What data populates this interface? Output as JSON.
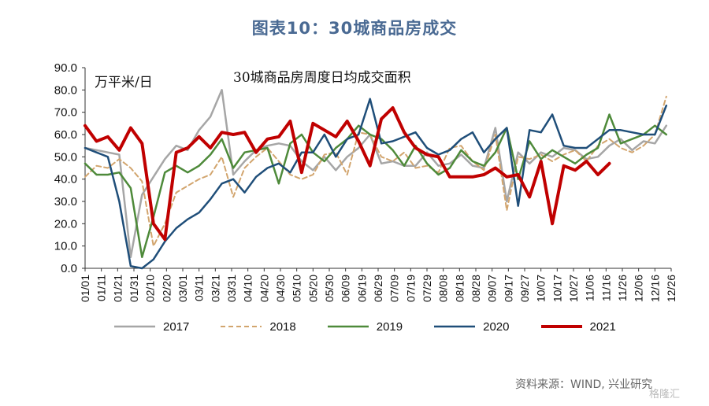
{
  "figure_title": "图表10：30城商品房成交",
  "unit_label": "万平米/日",
  "source": "资料来源：WIND, 兴业研究",
  "watermark": "格隆汇",
  "chart_data": {
    "type": "line",
    "title": "30城商品房周度日均成交面积",
    "ylabel": "万平米/日",
    "ylim": [
      0,
      90
    ],
    "yticks": [
      "0.0",
      "10.0",
      "20.0",
      "30.0",
      "40.0",
      "50.0",
      "60.0",
      "70.0",
      "80.0",
      "90.0"
    ],
    "xticks": [
      "01/01",
      "01/11",
      "01/21",
      "01/31",
      "02/10",
      "02/20",
      "03/01",
      "03/11",
      "03/21",
      "03/31",
      "04/10",
      "04/20",
      "04/30",
      "05/10",
      "05/20",
      "05/30",
      "06/09",
      "06/19",
      "06/29",
      "07/09",
      "07/19",
      "07/29",
      "08/08",
      "08/18",
      "08/28",
      "09/07",
      "09/17",
      "09/27",
      "10/07",
      "10/17",
      "10/27",
      "11/06",
      "11/16",
      "11/26",
      "12/06",
      "12/16",
      "12/26"
    ],
    "x_range_days": [
      1,
      361
    ],
    "grid": false,
    "legend_position": "bottom",
    "series": [
      {
        "name": "2017",
        "color": "#a6a6a6",
        "dash": "",
        "width": 2.5,
        "x": [
          1,
          8,
          15,
          22,
          29,
          36,
          43,
          50,
          57,
          64,
          71,
          78,
          85,
          92,
          99,
          106,
          113,
          120,
          127,
          134,
          141,
          148,
          155,
          162,
          169,
          176,
          183,
          190,
          197,
          204,
          211,
          218,
          225,
          232,
          239,
          246,
          253,
          260,
          267,
          274,
          281,
          288,
          295,
          302,
          309,
          316,
          323,
          330,
          337,
          344,
          351,
          358
        ],
        "y": [
          54,
          53,
          52,
          51,
          5,
          33,
          41,
          49,
          55,
          53,
          62,
          68,
          80,
          42,
          48,
          53,
          55,
          56,
          55,
          48,
          44,
          50,
          44,
          50,
          54,
          60,
          47,
          48,
          46,
          46,
          52,
          46,
          47,
          51,
          46,
          45,
          63,
          30,
          52,
          47,
          52,
          50,
          54,
          53,
          49,
          50,
          55,
          58,
          53,
          57,
          56,
          64
        ]
      },
      {
        "name": "2018",
        "color": "#d2a56e",
        "dash": "6,4",
        "width": 2,
        "x": [
          1,
          8,
          15,
          22,
          29,
          36,
          43,
          50,
          57,
          64,
          71,
          78,
          85,
          92,
          99,
          106,
          113,
          120,
          127,
          134,
          141,
          148,
          155,
          162,
          169,
          176,
          183,
          190,
          197,
          204,
          211,
          218,
          225,
          232,
          239,
          246,
          253,
          260,
          267,
          274,
          281,
          288,
          295,
          302,
          309,
          316,
          323,
          330,
          337,
          344,
          351,
          358
        ],
        "y": [
          41,
          46,
          45,
          49,
          45,
          39,
          10,
          20,
          34,
          37,
          40,
          42,
          50,
          32,
          45,
          50,
          54,
          48,
          42,
          40,
          42,
          51,
          52,
          42,
          61,
          60,
          50,
          48,
          52,
          45,
          46,
          43,
          54,
          55,
          48,
          44,
          60,
          26,
          50,
          49,
          51,
          48,
          51,
          53,
          48,
          55,
          58,
          54,
          52,
          55,
          60,
          77
        ]
      },
      {
        "name": "2019",
        "color": "#4e8a3a",
        "dash": "",
        "width": 2.5,
        "x": [
          1,
          8,
          15,
          22,
          29,
          36,
          43,
          50,
          57,
          64,
          71,
          78,
          85,
          92,
          99,
          106,
          113,
          120,
          127,
          134,
          141,
          148,
          155,
          162,
          169,
          176,
          183,
          190,
          197,
          204,
          211,
          218,
          225,
          232,
          239,
          246,
          253,
          260,
          267,
          274,
          281,
          288,
          295,
          302,
          309,
          316,
          323,
          330,
          337,
          344,
          351,
          358
        ],
        "y": [
          47,
          42,
          42,
          43,
          36,
          5,
          23,
          43,
          46,
          43,
          46,
          51,
          58,
          45,
          52,
          53,
          54,
          38,
          56,
          60,
          52,
          48,
          54,
          58,
          64,
          60,
          58,
          53,
          46,
          55,
          47,
          42,
          45,
          53,
          48,
          46,
          52,
          63,
          40,
          57,
          49,
          53,
          50,
          47,
          51,
          54,
          69,
          56,
          58,
          60,
          64,
          60
        ]
      },
      {
        "name": "2020",
        "color": "#1f4e79",
        "dash": "",
        "width": 2.5,
        "x": [
          1,
          8,
          15,
          22,
          29,
          36,
          43,
          50,
          57,
          64,
          71,
          78,
          85,
          92,
          99,
          106,
          113,
          120,
          127,
          134,
          141,
          148,
          155,
          162,
          169,
          176,
          183,
          190,
          197,
          204,
          211,
          218,
          225,
          232,
          239,
          246,
          253,
          260,
          267,
          274,
          281,
          288,
          295,
          302,
          309,
          316,
          323,
          330,
          337,
          344,
          351,
          358
        ],
        "y": [
          54,
          52,
          50,
          30,
          1,
          0,
          4,
          12,
          18,
          22,
          25,
          31,
          38,
          40,
          34,
          41,
          45,
          47,
          43,
          52,
          52,
          60,
          50,
          58,
          60,
          76,
          56,
          57,
          59,
          61,
          54,
          51,
          53,
          58,
          61,
          52,
          58,
          63,
          28,
          62,
          61,
          69,
          55,
          54,
          54,
          58,
          62,
          62,
          61,
          60,
          60,
          73
        ]
      },
      {
        "name": "2021",
        "color": "#c00000",
        "dash": "",
        "width": 4,
        "x": [
          1,
          8,
          15,
          22,
          29,
          36,
          43,
          50,
          57,
          64,
          71,
          78,
          85,
          92,
          99,
          106,
          113,
          120,
          127,
          134,
          141,
          148,
          155,
          162,
          169,
          176,
          183,
          190,
          197,
          204,
          211,
          218,
          225,
          232,
          239,
          246,
          253,
          260,
          267,
          274,
          281,
          288,
          295,
          302,
          309,
          316,
          323
        ],
        "y": [
          64,
          57,
          59,
          53,
          63,
          56,
          20,
          13,
          52,
          54,
          59,
          54,
          61,
          60,
          61,
          52,
          58,
          59,
          66,
          43,
          65,
          62,
          59,
          66,
          57,
          46,
          67,
          72,
          61,
          54,
          51,
          50,
          41,
          41,
          41,
          42,
          45,
          41,
          42,
          32,
          48,
          20,
          46,
          44,
          48,
          42,
          47
        ]
      }
    ]
  }
}
